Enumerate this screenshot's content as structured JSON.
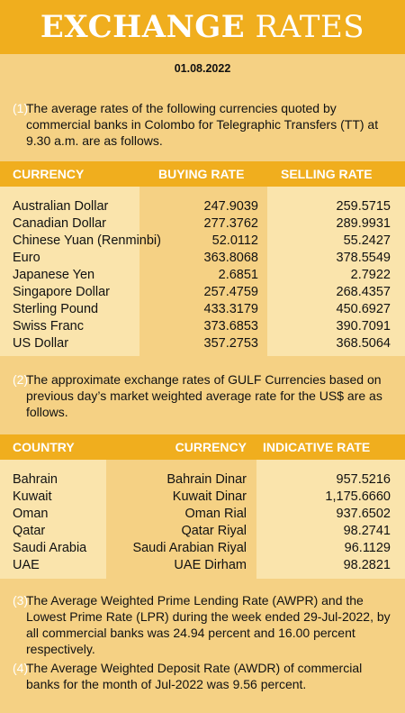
{
  "title": {
    "part1": "EXCHANGE",
    "part2": "RATES"
  },
  "date": "01.08.2022",
  "notes": [
    {
      "number": "(1)",
      "text": "The average rates of the following currencies quoted by commercial banks in Colombo for Telegraphic Transfers (TT) at 9.30 a.m. are as follows."
    },
    {
      "number": "(2)",
      "text": "The approximate exchange rates of GULF Currencies based on previous day’s market weighted average rate for the US$ are as follows."
    },
    {
      "number": "(3)",
      "text": "The Average Weighted Prime Lending Rate (AWPR) and the Lowest Prime Rate (LPR) during the week ended 29-Jul-2022, by all commercial banks was 24.94 percent and 16.00 percent respectively."
    },
    {
      "number": "(4)",
      "text": "The Average Weighted Deposit Rate (AWDR) of commercial banks for the month of Jul-2022 was 9.56 percent."
    }
  ],
  "currency_table": {
    "headers": [
      "CURRENCY",
      "BUYING RATE",
      "SELLING RATE"
    ],
    "rows": [
      [
        "Australian Dollar",
        "247.9039",
        "259.5715"
      ],
      [
        "Canadian Dollar",
        "277.3762",
        "289.9931"
      ],
      [
        "Chinese Yuan (Renminbi)",
        "52.0112",
        "55.2427"
      ],
      [
        "Euro",
        "363.8068",
        "378.5549"
      ],
      [
        "Japanese Yen",
        "2.6851",
        "2.7922"
      ],
      [
        "Singapore Dollar",
        "257.4759",
        "268.4357"
      ],
      [
        "Sterling Pound",
        "433.3179",
        "450.6927"
      ],
      [
        "Swiss Franc",
        "373.6853",
        "390.7091"
      ],
      [
        "US Dollar",
        "357.2753",
        "368.5064"
      ]
    ]
  },
  "gulf_table": {
    "headers": [
      "COUNTRY",
      "CURRENCY",
      "INDICATIVE RATE"
    ],
    "rows": [
      [
        "Bahrain",
        "Bahrain Dinar",
        "957.5216"
      ],
      [
        "Kuwait",
        "Kuwait Dinar",
        "1,175.6660"
      ],
      [
        "Oman",
        "Oman Rial",
        "937.6502"
      ],
      [
        "Qatar",
        "Qatar Riyal",
        "98.2741"
      ],
      [
        "Saudi Arabia",
        "Saudi Arabian Riyal",
        "96.1129"
      ],
      [
        "UAE",
        "UAE Dirham",
        "98.2821"
      ]
    ]
  }
}
